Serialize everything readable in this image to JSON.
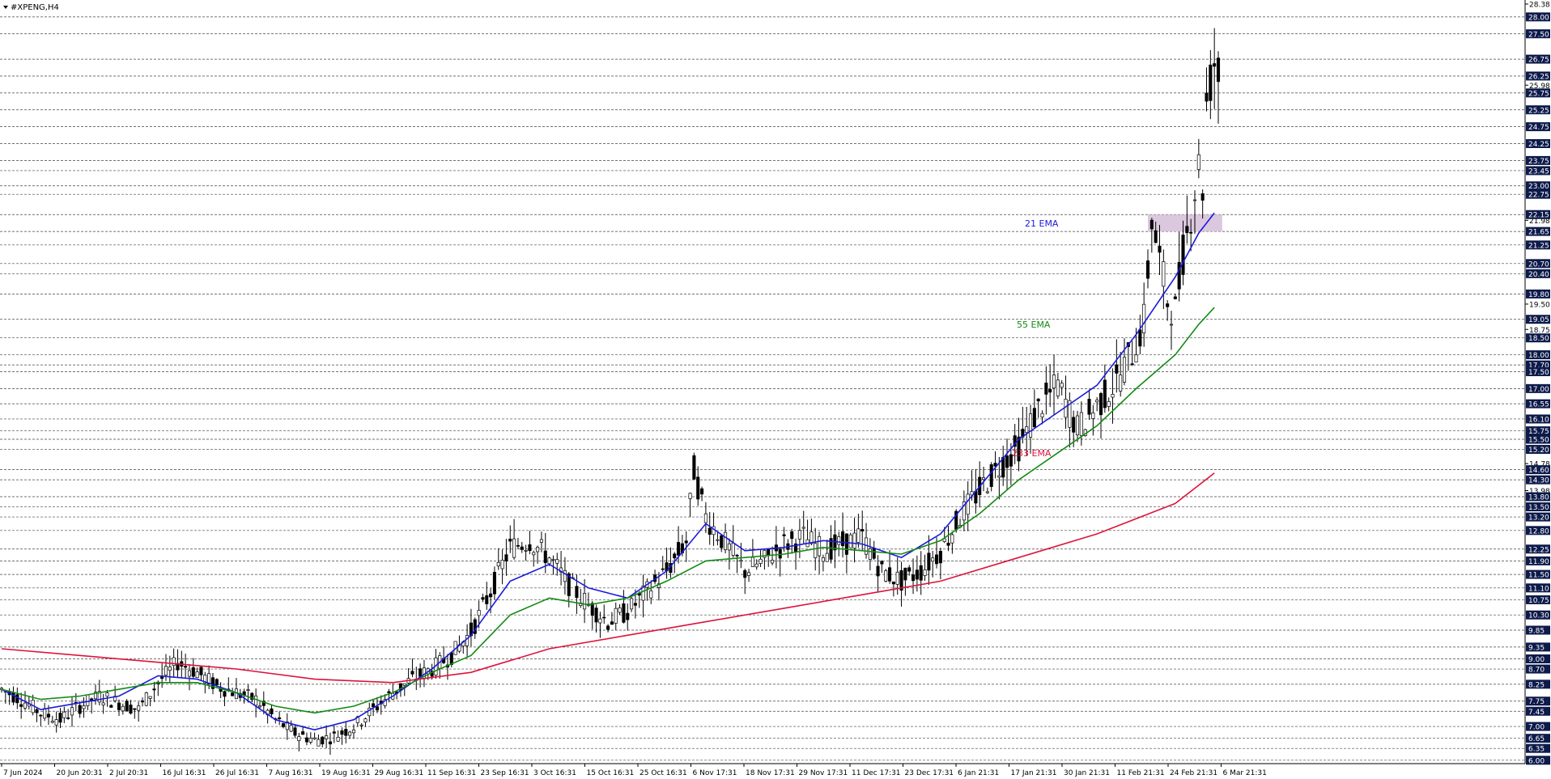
{
  "chart_data": {
    "type": "line",
    "title": "#XPENG,H4",
    "price_ticks": [
      "28.38",
      "28.00",
      "27.50",
      "26.75",
      "26.25",
      "25.98",
      "25.75",
      "25.25",
      "24.75",
      "24.25",
      "23.75",
      "23.45",
      "23.00",
      "22.75",
      "22.15",
      "21.98",
      "21.65",
      "21.25",
      "20.70",
      "20.40",
      "19.80",
      "19.50",
      "19.05",
      "18.75",
      "18.50",
      "18.00",
      "17.70",
      "17.50",
      "17.00",
      "16.55",
      "16.10",
      "15.75",
      "15.50",
      "15.20",
      "14.78",
      "14.60",
      "14.30",
      "13.98",
      "13.80",
      "13.50",
      "13.20",
      "12.80",
      "12.25",
      "11.90",
      "11.50",
      "11.10",
      "10.75",
      "10.30",
      "9.85",
      "9.35",
      "9.00",
      "8.70",
      "8.25",
      "7.75",
      "7.45",
      "7.00",
      "6.65",
      "6.35",
      "6.00"
    ],
    "highlighted_prices": [
      "28.00",
      "27.50",
      "26.75",
      "26.25",
      "25.75",
      "25.25",
      "24.75",
      "24.25",
      "23.75",
      "23.45",
      "23.00",
      "22.75",
      "22.15",
      "21.65",
      "21.25",
      "20.70",
      "20.40",
      "19.80",
      "19.05",
      "18.50",
      "18.00",
      "17.70",
      "17.50",
      "17.00",
      "16.55",
      "16.10",
      "15.75",
      "15.50",
      "15.20",
      "14.60",
      "14.30",
      "13.80",
      "13.50",
      "13.20",
      "12.80",
      "12.25",
      "11.90",
      "11.50",
      "11.10",
      "10.75",
      "10.30",
      "9.85",
      "9.35",
      "9.00",
      "8.70",
      "8.25",
      "7.75",
      "7.45",
      "7.00",
      "6.65",
      "6.35",
      "6.00"
    ],
    "y_range": [
      5.9,
      28.5
    ],
    "x_ticks": [
      "7 Jun 2024",
      "20 Jun 20:31",
      "2 Jul 20:31",
      "16 Jul 16:31",
      "26 Jul 16:31",
      "7 Aug 16:31",
      "19 Aug 16:31",
      "29 Aug 16:31",
      "11 Sep 16:31",
      "23 Sep 16:31",
      "3 Oct 16:31",
      "15 Oct 16:31",
      "25 Oct 16:31",
      "6 Nov 17:31",
      "18 Nov 17:31",
      "29 Nov 17:31",
      "11 Dec 17:31",
      "23 Dec 17:31",
      "6 Jan 21:31",
      "17 Jan 21:31",
      "30 Jan 21:31",
      "11 Feb 21:31",
      "24 Feb 21:31",
      "6 Mar 21:31"
    ],
    "price_path": [
      [
        0,
        8.1
      ],
      [
        5,
        7.8
      ],
      [
        10,
        7.4
      ],
      [
        15,
        7.2
      ],
      [
        20,
        7.6
      ],
      [
        25,
        7.9
      ],
      [
        30,
        7.7
      ],
      [
        35,
        7.5
      ],
      [
        40,
        8.3
      ],
      [
        45,
        8.9
      ],
      [
        50,
        8.6
      ],
      [
        55,
        8.2
      ],
      [
        60,
        8.0
      ],
      [
        65,
        7.8
      ],
      [
        70,
        7.2
      ],
      [
        75,
        6.8
      ],
      [
        80,
        6.6
      ],
      [
        85,
        6.7
      ],
      [
        90,
        7.0
      ],
      [
        95,
        7.5
      ],
      [
        100,
        8.0
      ],
      [
        105,
        8.4
      ],
      [
        110,
        8.7
      ],
      [
        115,
        9.1
      ],
      [
        120,
        9.8
      ],
      [
        125,
        11.0
      ],
      [
        130,
        12.3
      ],
      [
        135,
        12.5
      ],
      [
        140,
        12.0
      ],
      [
        145,
        11.2
      ],
      [
        150,
        10.6
      ],
      [
        155,
        10.1
      ],
      [
        160,
        10.4
      ],
      [
        165,
        11.0
      ],
      [
        170,
        11.6
      ],
      [
        175,
        12.5
      ],
      [
        177,
        14.6
      ],
      [
        180,
        13.2
      ],
      [
        185,
        12.4
      ],
      [
        190,
        11.6
      ],
      [
        195,
        11.9
      ],
      [
        200,
        12.4
      ],
      [
        205,
        12.6
      ],
      [
        210,
        12.2
      ],
      [
        215,
        12.4
      ],
      [
        220,
        12.6
      ],
      [
        225,
        11.6
      ],
      [
        230,
        11.3
      ],
      [
        235,
        11.6
      ],
      [
        240,
        12.2
      ],
      [
        245,
        13.2
      ],
      [
        250,
        14.0
      ],
      [
        255,
        14.7
      ],
      [
        260,
        15.3
      ],
      [
        265,
        16.4
      ],
      [
        270,
        17.1
      ],
      [
        275,
        15.8
      ],
      [
        280,
        16.5
      ],
      [
        285,
        17.2
      ],
      [
        290,
        18.3
      ],
      [
        292,
        19.0
      ],
      [
        294,
        22.0
      ],
      [
        296,
        20.8
      ],
      [
        298,
        19.6
      ],
      [
        300,
        19.3
      ],
      [
        302,
        21.0
      ],
      [
        304,
        22.2
      ],
      [
        306,
        23.6
      ],
      [
        307,
        23.0
      ],
      [
        308,
        25.5
      ],
      [
        310,
        26.7
      ],
      [
        311,
        26.3
      ]
    ],
    "price_last": "25.98",
    "series": [
      {
        "name": "21 EMA",
        "color": "#1a1adb",
        "points": [
          [
            0,
            8.1
          ],
          [
            10,
            7.5
          ],
          [
            20,
            7.7
          ],
          [
            30,
            7.9
          ],
          [
            40,
            8.5
          ],
          [
            50,
            8.4
          ],
          [
            60,
            8.0
          ],
          [
            70,
            7.2
          ],
          [
            80,
            6.9
          ],
          [
            90,
            7.2
          ],
          [
            100,
            7.9
          ],
          [
            110,
            8.7
          ],
          [
            120,
            9.7
          ],
          [
            130,
            11.3
          ],
          [
            140,
            11.8
          ],
          [
            150,
            11.1
          ],
          [
            160,
            10.8
          ],
          [
            170,
            11.6
          ],
          [
            180,
            13.0
          ],
          [
            190,
            12.2
          ],
          [
            200,
            12.3
          ],
          [
            210,
            12.5
          ],
          [
            220,
            12.4
          ],
          [
            230,
            12.0
          ],
          [
            240,
            12.7
          ],
          [
            250,
            14.1
          ],
          [
            260,
            15.5
          ],
          [
            270,
            16.3
          ],
          [
            280,
            17.1
          ],
          [
            290,
            18.6
          ],
          [
            300,
            20.3
          ],
          [
            306,
            21.6
          ],
          [
            310,
            22.2
          ]
        ]
      },
      {
        "name": "55 EMA",
        "color": "#138a13",
        "points": [
          [
            0,
            8.1
          ],
          [
            10,
            7.8
          ],
          [
            20,
            7.9
          ],
          [
            30,
            8.1
          ],
          [
            40,
            8.3
          ],
          [
            50,
            8.3
          ],
          [
            60,
            8.0
          ],
          [
            70,
            7.6
          ],
          [
            80,
            7.4
          ],
          [
            90,
            7.6
          ],
          [
            100,
            8.0
          ],
          [
            110,
            8.6
          ],
          [
            120,
            9.1
          ],
          [
            130,
            10.3
          ],
          [
            140,
            10.8
          ],
          [
            150,
            10.6
          ],
          [
            160,
            10.8
          ],
          [
            170,
            11.3
          ],
          [
            180,
            11.9
          ],
          [
            190,
            12.0
          ],
          [
            200,
            12.1
          ],
          [
            210,
            12.3
          ],
          [
            220,
            12.2
          ],
          [
            230,
            12.1
          ],
          [
            240,
            12.5
          ],
          [
            250,
            13.3
          ],
          [
            260,
            14.3
          ],
          [
            270,
            15.1
          ],
          [
            280,
            15.9
          ],
          [
            290,
            17.0
          ],
          [
            300,
            18.0
          ],
          [
            306,
            18.9
          ],
          [
            310,
            19.4
          ]
        ]
      },
      {
        "name": "233 EMA",
        "color": "#dc143c",
        "points": [
          [
            0,
            9.3
          ],
          [
            20,
            9.1
          ],
          [
            40,
            8.9
          ],
          [
            60,
            8.7
          ],
          [
            80,
            8.4
          ],
          [
            100,
            8.3
          ],
          [
            120,
            8.6
          ],
          [
            140,
            9.3
          ],
          [
            160,
            9.7
          ],
          [
            180,
            10.1
          ],
          [
            200,
            10.5
          ],
          [
            220,
            10.9
          ],
          [
            240,
            11.3
          ],
          [
            260,
            12.0
          ],
          [
            280,
            12.7
          ],
          [
            300,
            13.6
          ],
          [
            310,
            14.5
          ]
        ]
      }
    ],
    "zone": {
      "from": 21.65,
      "to": 22.15
    },
    "grid": true
  },
  "header": {
    "title": "#XPENG,H4"
  }
}
